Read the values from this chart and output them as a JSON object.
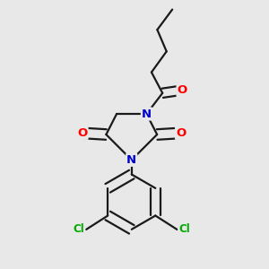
{
  "background_color": "#e8e8e8",
  "bond_color": "#1a1a1a",
  "nitrogen_color": "#0000cc",
  "oxygen_color": "#ff0000",
  "chlorine_color": "#00aa00",
  "bond_width": 1.6,
  "fig_width": 3.0,
  "fig_height": 3.0,
  "dpi": 100,
  "xlim": [
    0.15,
    0.85
  ],
  "ylim": [
    0.05,
    0.98
  ]
}
